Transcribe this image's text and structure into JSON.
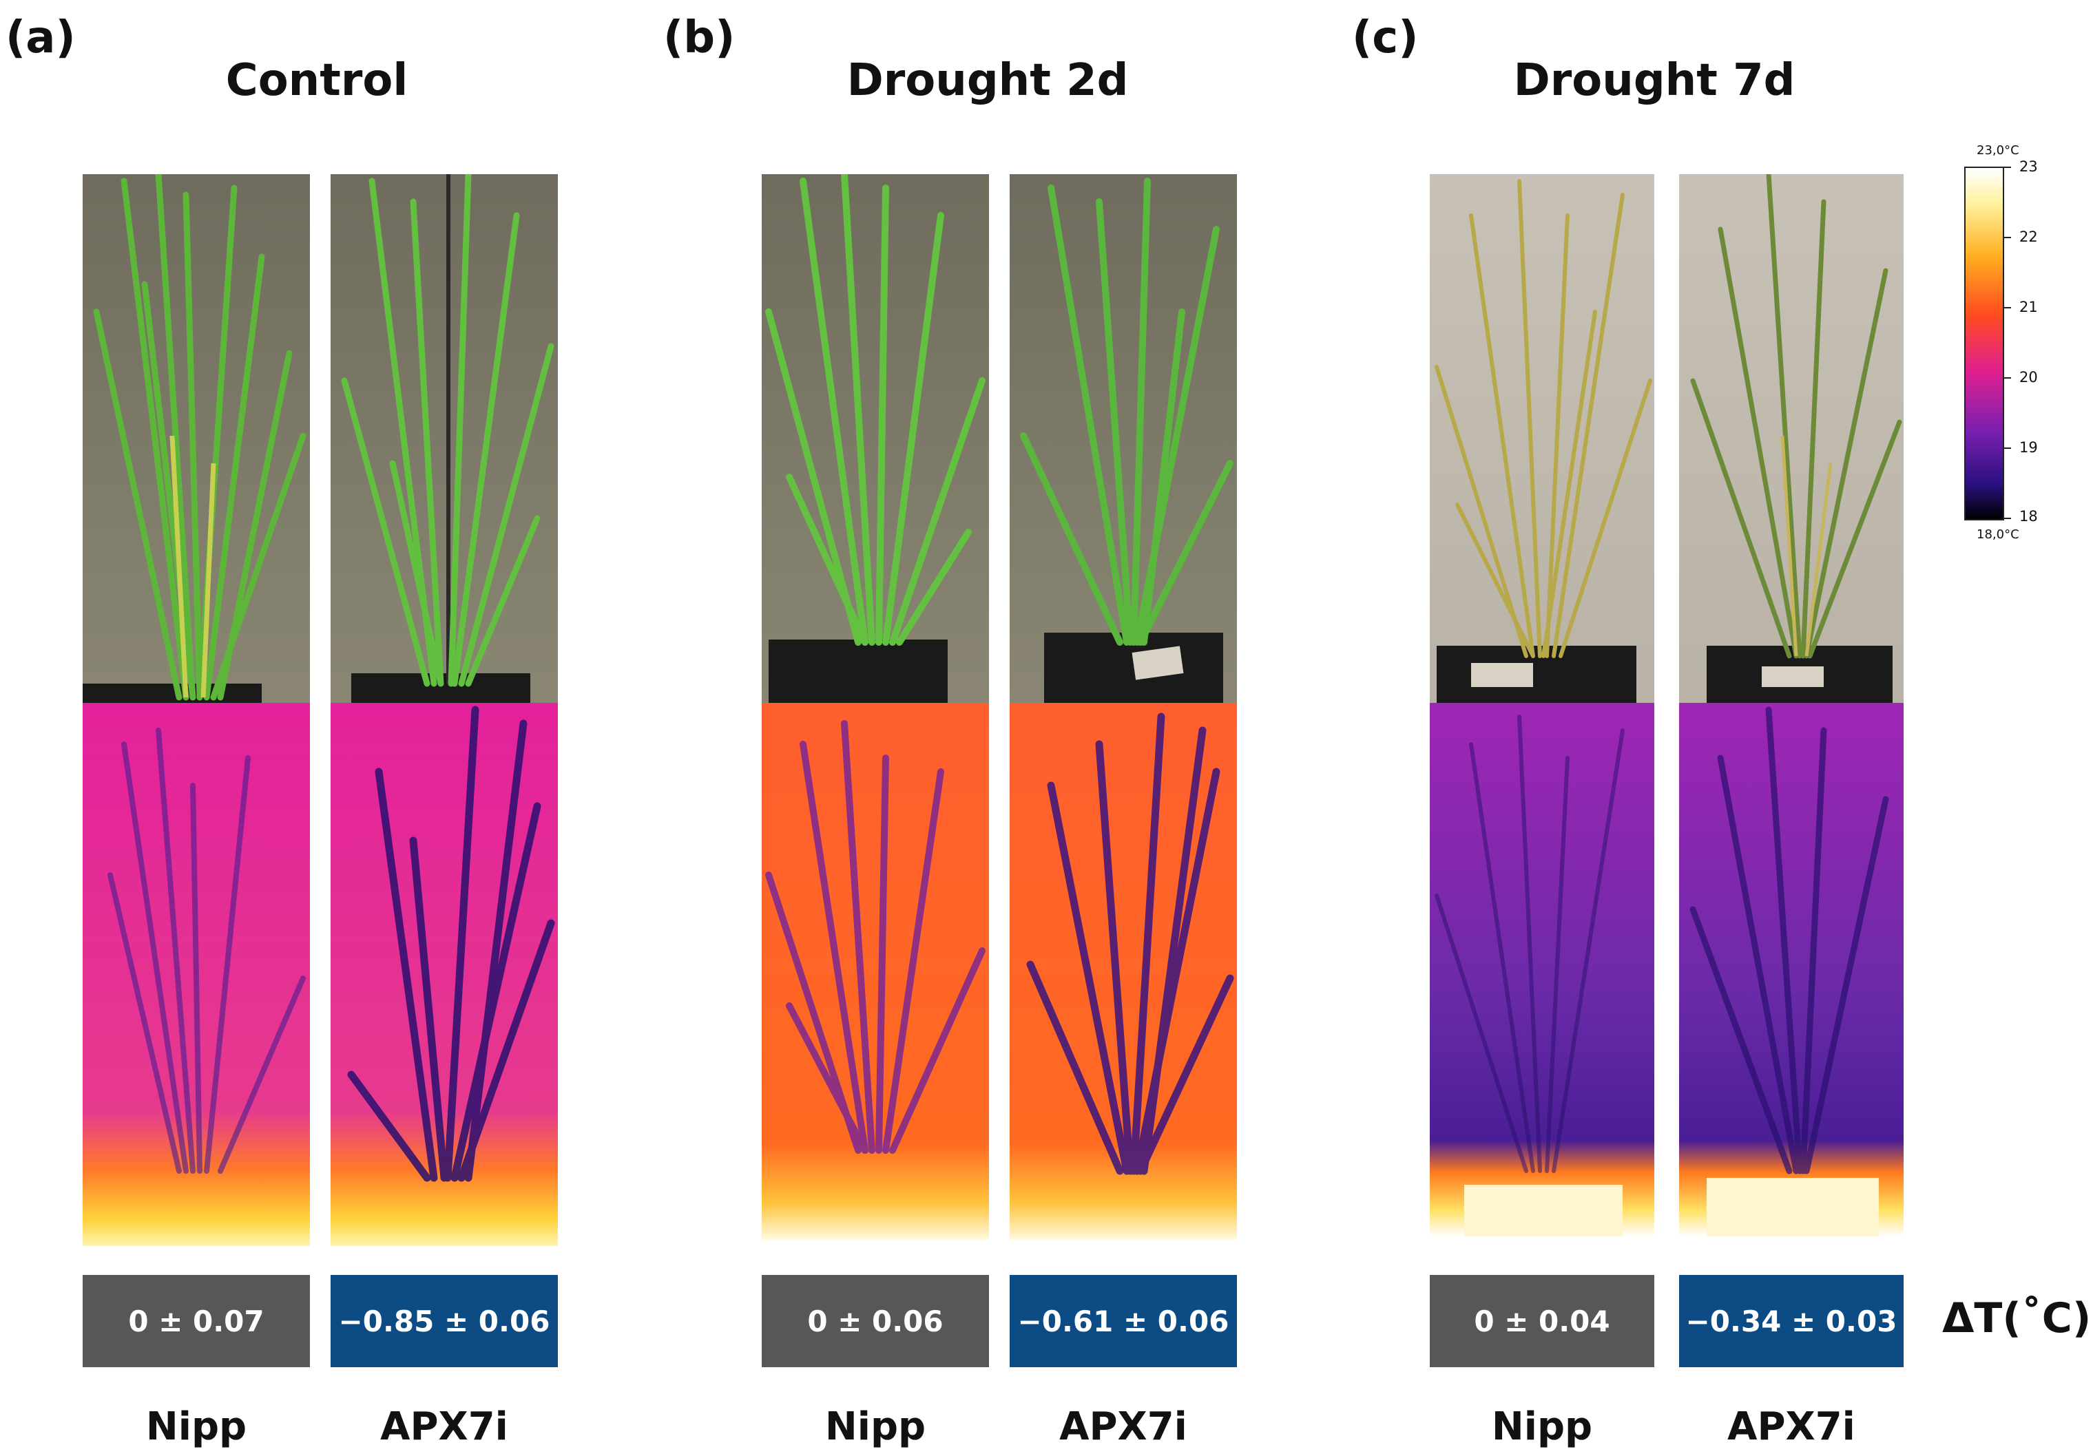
{
  "panels": [
    {
      "letter": "(a)",
      "title": "Control",
      "cells": [
        {
          "genotype": "Nipp",
          "delta": "0 ± 0.07"
        },
        {
          "genotype": "APX7i",
          "delta": "−0.85 ± 0.06"
        }
      ]
    },
    {
      "letter": "(b)",
      "title": "Drought 2d",
      "cells": [
        {
          "genotype": "Nipp",
          "delta": "0 ± 0.06"
        },
        {
          "genotype": "APX7i",
          "delta": "−0.61 ± 0.06"
        }
      ]
    },
    {
      "letter": "(c)",
      "title": "Drought 7d",
      "cells": [
        {
          "genotype": "Nipp",
          "delta": "0 ± 0.04"
        },
        {
          "genotype": "APX7i",
          "delta": "−0.34 ± 0.03"
        }
      ]
    }
  ],
  "delta_label": "ΔT(˚C)",
  "colorbar": {
    "max_label": "23,0°C",
    "min_label": "18,0°C",
    "ticks": [
      "23",
      "22",
      "21",
      "20",
      "19",
      "18"
    ]
  },
  "colors": {
    "reference_box": "#575757",
    "mutant_box": "#0d4b84",
    "thermal_control": "#e6219a",
    "thermal_drought2d": "#ff6a2a",
    "thermal_drought7d": "#9b2bb0"
  }
}
